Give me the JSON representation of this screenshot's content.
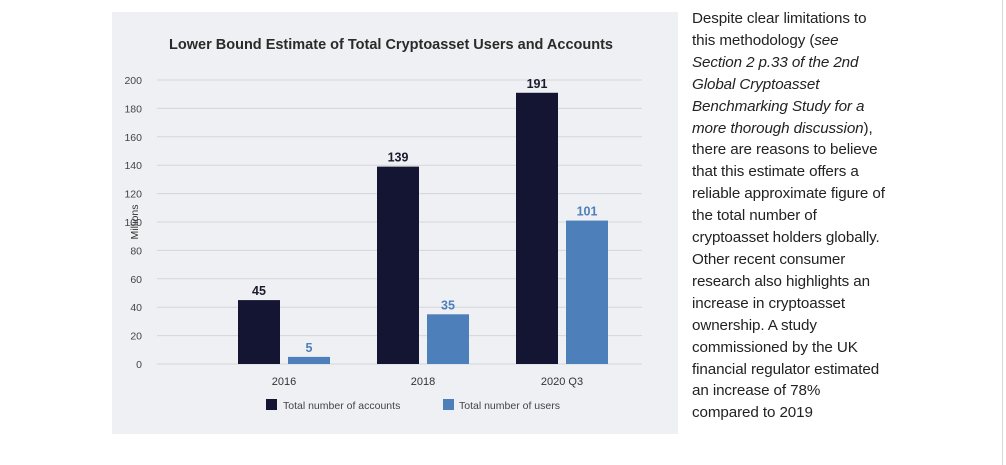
{
  "colors": {
    "accounts": "#131533",
    "users": "#4d7fba",
    "panel_bg": "#eef0f3",
    "grid": "#d3d6dc",
    "text": "#222222"
  },
  "chart_data": {
    "type": "bar",
    "title": "Lower Bound Estimate of Total Cryptoasset Users and Accounts",
    "xlabel": "",
    "ylabel": "Millions",
    "ylim": [
      0,
      200
    ],
    "yticks": [
      0,
      20,
      40,
      60,
      80,
      100,
      120,
      140,
      160,
      180,
      200
    ],
    "grid": true,
    "legend_position": "bottom",
    "categories": [
      "2016",
      "2018",
      "2020 Q3"
    ],
    "series": [
      {
        "name": "Total number of accounts",
        "values": [
          45,
          139,
          191
        ]
      },
      {
        "name": "Total number of users",
        "values": [
          5,
          35,
          101
        ]
      }
    ]
  },
  "side_text": {
    "part1": "Despite clear limitations to this methodology (",
    "italic": "see Section 2 p.33 of the 2nd Global Cryptoasset Benchmarking Study for a more thorough discussion",
    "part2": "), there are reasons to believe that this estimate offers a reliable approximate figure of the total number of cryptoasset holders globally. Other recent consumer research also highlights an increase in cryptoasset ownership. A study commissioned by the UK financial regulator estimated an increase of 78% compared to 2019"
  }
}
